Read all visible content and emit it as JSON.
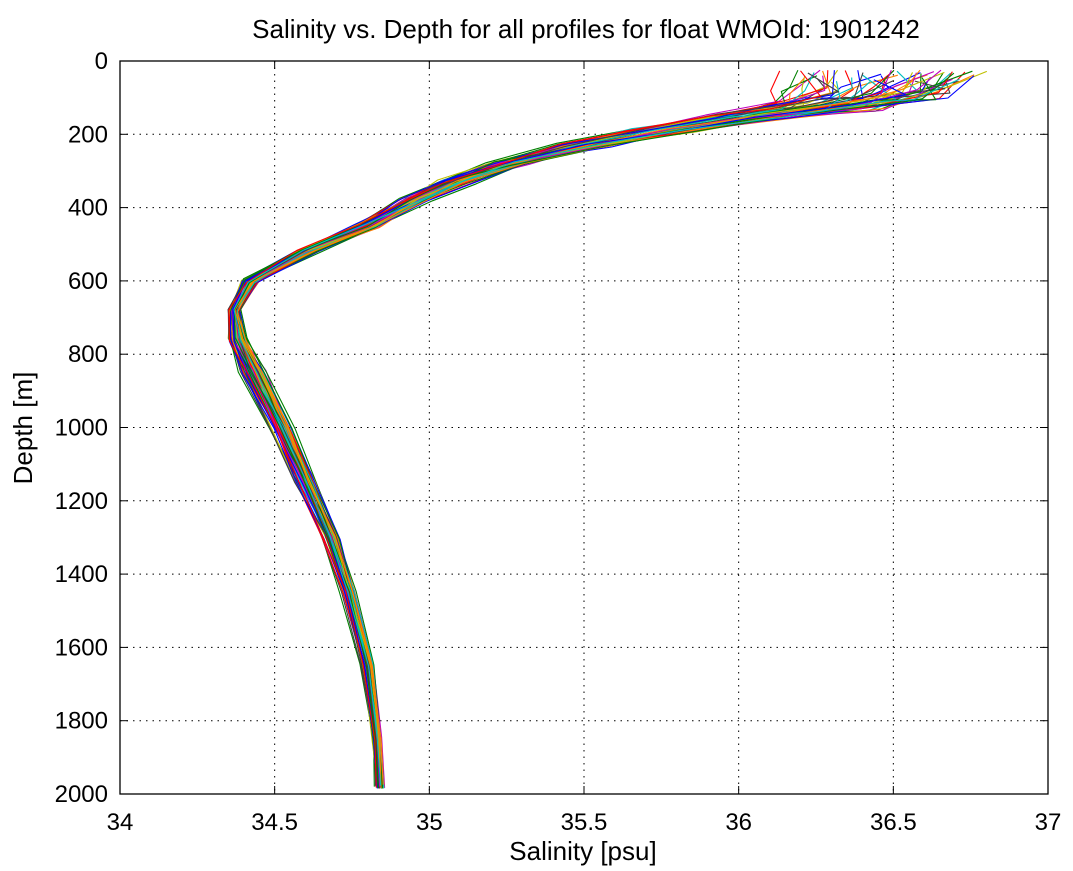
{
  "chart_data": {
    "type": "line",
    "title": "Salinity vs. Depth for all profiles for float WMOId: 1901242",
    "xlabel": "Salinity [psu]",
    "ylabel": "Depth [m]",
    "xlim": [
      34,
      37
    ],
    "ylim": [
      0,
      2000
    ],
    "y_reversed": true,
    "grid": true,
    "grid_style": "dotted",
    "x_ticks": [
      "34",
      "34.5",
      "35",
      "35.5",
      "36",
      "36.5",
      "37"
    ],
    "y_ticks": [
      "0",
      "200",
      "400",
      "600",
      "800",
      "1000",
      "1200",
      "1400",
      "1600",
      "1800",
      "2000"
    ],
    "colors": [
      "#0000ff",
      "#008000",
      "#ff0000",
      "#00bfbf",
      "#bf00bf",
      "#bfbf00",
      "#404040",
      "#ff8000"
    ],
    "base_profile": {
      "salinity": [
        36.45,
        36.42,
        36.3,
        36.05,
        35.75,
        35.5,
        35.25,
        35.08,
        34.95,
        34.8,
        34.6,
        34.42,
        34.37,
        34.38,
        34.43,
        34.52,
        34.6,
        34.68,
        34.74,
        34.8,
        34.83,
        34.84
      ],
      "depth": [
        30,
        80,
        110,
        150,
        190,
        230,
        280,
        330,
        380,
        450,
        520,
        600,
        680,
        760,
        850,
        1000,
        1150,
        1300,
        1450,
        1650,
        1850,
        1980
      ]
    },
    "series_count": 60,
    "profile_variability_psu": [
      0.3,
      0.25,
      0.2,
      0.14,
      0.1,
      0.08,
      0.07,
      0.06,
      0.05,
      0.05,
      0.04,
      0.03,
      0.02,
      0.03,
      0.04,
      0.04,
      0.035,
      0.03,
      0.025,
      0.02,
      0.015,
      0.015
    ]
  }
}
